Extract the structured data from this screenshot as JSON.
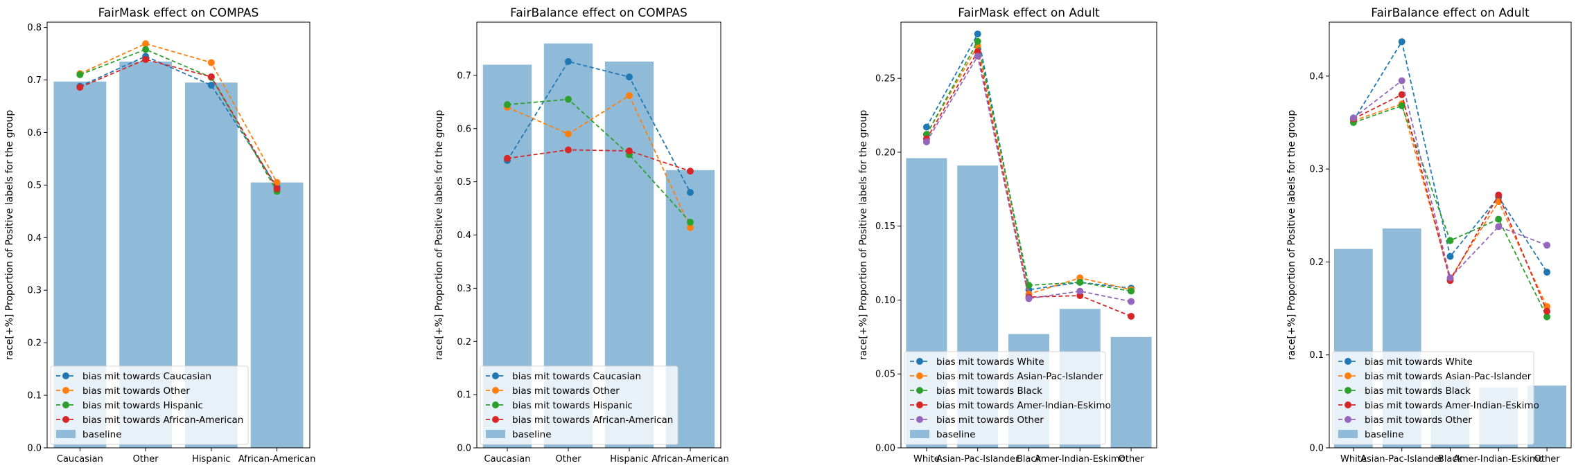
{
  "chart_data": [
    {
      "type": "bar",
      "title": "FairMask effect on COMPAS",
      "xlabel": "",
      "ylabel": "race[+%] Proportion of Positive labels for the group",
      "categories": [
        "Caucasian",
        "Other",
        "Hispanic",
        "African-American"
      ],
      "ylim": [
        0,
        0.81
      ],
      "yticks": [
        0.0,
        0.1,
        0.2,
        0.3,
        0.4,
        0.5,
        0.6,
        0.7,
        0.8
      ],
      "ytick_labels": [
        "0.0",
        "0.1",
        "0.2",
        "0.3",
        "0.4",
        "0.5",
        "0.6",
        "0.7",
        "0.8"
      ],
      "bars": {
        "name": "baseline",
        "values": [
          0.697,
          0.735,
          0.695,
          0.505
        ],
        "color": "#8fbbd9"
      },
      "series": [
        {
          "name": "bias mit towards Caucasian",
          "values": [
            0.688,
            0.745,
            0.69,
            0.497
          ],
          "color": "#1f77b4"
        },
        {
          "name": "bias mit towards Other",
          "values": [
            0.712,
            0.769,
            0.733,
            0.505
          ],
          "color": "#ff7f0e"
        },
        {
          "name": "bias mit towards Hispanic",
          "values": [
            0.71,
            0.758,
            0.705,
            0.488
          ],
          "color": "#2ca02c"
        },
        {
          "name": "bias mit towards African-American",
          "values": [
            0.686,
            0.739,
            0.706,
            0.493
          ],
          "color": "#d62728"
        }
      ],
      "legend_placement": "lower-left",
      "grid": false
    },
    {
      "type": "bar",
      "title": "FairBalance effect on COMPAS",
      "xlabel": "",
      "ylabel": "race[+%] Proportion of Positive labels for the group",
      "categories": [
        "Caucasian",
        "Other",
        "Hispanic",
        "African-American"
      ],
      "ylim": [
        0,
        0.8
      ],
      "yticks": [
        0.0,
        0.1,
        0.2,
        0.3,
        0.4,
        0.5,
        0.6,
        0.7
      ],
      "ytick_labels": [
        "0.0",
        "0.1",
        "0.2",
        "0.3",
        "0.4",
        "0.5",
        "0.6",
        "0.7"
      ],
      "bars": {
        "name": "baseline",
        "values": [
          0.72,
          0.76,
          0.726,
          0.522
        ],
        "color": "#8fbbd9"
      },
      "series": [
        {
          "name": "bias mit towards Caucasian",
          "values": [
            0.54,
            0.726,
            0.697,
            0.48
          ],
          "color": "#1f77b4"
        },
        {
          "name": "bias mit towards Other",
          "values": [
            0.64,
            0.59,
            0.662,
            0.414
          ],
          "color": "#ff7f0e"
        },
        {
          "name": "bias mit towards Hispanic",
          "values": [
            0.645,
            0.655,
            0.551,
            0.424
          ],
          "color": "#2ca02c"
        },
        {
          "name": "bias mit towards African-American",
          "values": [
            0.544,
            0.56,
            0.558,
            0.52
          ],
          "color": "#d62728"
        }
      ],
      "legend_placement": "lower-left",
      "grid": false
    },
    {
      "type": "bar",
      "title": "FairMask effect on Adult",
      "xlabel": "",
      "ylabel": "race[+%] Proportion of Positive labels for the group",
      "categories": [
        "White",
        "Asian-Pac-Islander",
        "Black",
        "Amer-Indian-Eskimo",
        "Other"
      ],
      "ylim": [
        0,
        0.288
      ],
      "yticks": [
        0.0,
        0.05,
        0.1,
        0.15,
        0.2,
        0.25
      ],
      "ytick_labels": [
        "0.00",
        "0.05",
        "0.10",
        "0.15",
        "0.20",
        "0.25"
      ],
      "bars": {
        "name": "baseline",
        "values": [
          0.196,
          0.191,
          0.077,
          0.094,
          0.075
        ],
        "color": "#8fbbd9"
      },
      "series": [
        {
          "name": "bias mit towards White",
          "values": [
            0.217,
            0.28,
            0.107,
            0.112,
            0.108
          ],
          "color": "#1f77b4"
        },
        {
          "name": "bias mit towards Asian-Pac-Islander",
          "values": [
            0.212,
            0.272,
            0.104,
            0.115,
            0.107
          ],
          "color": "#ff7f0e"
        },
        {
          "name": "bias mit towards Black",
          "values": [
            0.212,
            0.275,
            0.11,
            0.112,
            0.106
          ],
          "color": "#2ca02c"
        },
        {
          "name": "bias mit towards Amer-Indian-Eskimo",
          "values": [
            0.209,
            0.268,
            0.102,
            0.103,
            0.089
          ],
          "color": "#d62728"
        },
        {
          "name": "bias mit towards Other",
          "values": [
            0.207,
            0.265,
            0.101,
            0.106,
            0.099
          ],
          "color": "#9467bd"
        }
      ],
      "legend_placement": "lower-left",
      "grid": false
    },
    {
      "type": "bar",
      "title": "FairBalance effect on Adult",
      "xlabel": "",
      "ylabel": "race[+%] Proportion of Positive labels for the group",
      "categories": [
        "White",
        "Asian-Pac-Islander",
        "Black",
        "Amer-Indian-Eskimo",
        "Other"
      ],
      "ylim": [
        0,
        0.458
      ],
      "yticks": [
        0.0,
        0.1,
        0.2,
        0.3,
        0.4
      ],
      "ytick_labels": [
        "0.0",
        "0.1",
        "0.2",
        "0.3",
        "0.4"
      ],
      "bars": {
        "name": "baseline",
        "values": [
          0.214,
          0.236,
          0.073,
          0.065,
          0.067
        ],
        "color": "#8fbbd9"
      },
      "series": [
        {
          "name": "bias mit towards White",
          "values": [
            0.352,
            0.437,
            0.206,
            0.27,
            0.189
          ],
          "color": "#1f77b4"
        },
        {
          "name": "bias mit towards Asian-Pac-Islander",
          "values": [
            0.352,
            0.37,
            0.182,
            0.265,
            0.152
          ],
          "color": "#ff7f0e"
        },
        {
          "name": "bias mit towards Black",
          "values": [
            0.35,
            0.368,
            0.223,
            0.246,
            0.141
          ],
          "color": "#2ca02c"
        },
        {
          "name": "bias mit towards Amer-Indian-Eskimo",
          "values": [
            0.354,
            0.38,
            0.18,
            0.272,
            0.147
          ],
          "color": "#d62728"
        },
        {
          "name": "bias mit towards Other",
          "values": [
            0.355,
            0.395,
            0.183,
            0.238,
            0.218
          ],
          "color": "#9467bd"
        }
      ],
      "legend_placement": "lower-left",
      "grid": false
    }
  ]
}
